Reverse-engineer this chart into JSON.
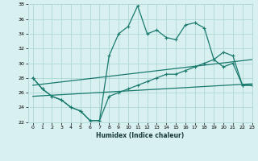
{
  "xlabel": "Humidex (Indice chaleur)",
  "bg_color": "#d8f0f0",
  "line_color": "#1a7a6e",
  "grid_color": "#b0d8d8",
  "xlim": [
    -0.5,
    23
  ],
  "ylim": [
    22,
    38
  ],
  "xticks": [
    0,
    1,
    2,
    3,
    4,
    5,
    6,
    7,
    8,
    9,
    10,
    11,
    12,
    13,
    14,
    15,
    16,
    17,
    18,
    19,
    20,
    21,
    22,
    23
  ],
  "yticks": [
    22,
    24,
    26,
    28,
    30,
    32,
    34,
    36,
    38
  ],
  "series1_x": [
    0,
    1,
    2,
    3,
    4,
    5,
    6,
    7,
    8,
    9,
    10,
    11,
    12,
    13,
    14,
    15,
    16,
    17,
    18,
    19,
    20,
    21,
    22,
    23
  ],
  "series1_y": [
    28,
    26.5,
    25.5,
    25,
    24,
    23.5,
    22.2,
    22.2,
    25.5,
    26,
    26.5,
    27,
    27.5,
    28,
    28.5,
    28.5,
    29,
    29.5,
    30,
    30.5,
    31.5,
    31,
    27,
    27
  ],
  "series2_x": [
    0,
    1,
    2,
    3,
    4,
    5,
    6,
    7,
    8,
    9,
    10,
    11,
    12,
    13,
    14,
    15,
    16,
    17,
    18,
    19,
    20,
    21,
    22,
    23
  ],
  "series2_y": [
    28,
    26.5,
    25.5,
    25,
    24,
    23.5,
    22.2,
    22.2,
    31,
    34,
    35,
    37.8,
    34,
    34.5,
    33.5,
    33.2,
    35.2,
    35.5,
    34.8,
    30.5,
    29.5,
    30,
    27,
    27
  ],
  "series3_x": [
    0,
    23
  ],
  "series3_y": [
    25.5,
    27.2
  ],
  "series4_x": [
    0,
    23
  ],
  "series4_y": [
    27.0,
    30.5
  ],
  "marker_size": 3,
  "linewidth": 0.9
}
